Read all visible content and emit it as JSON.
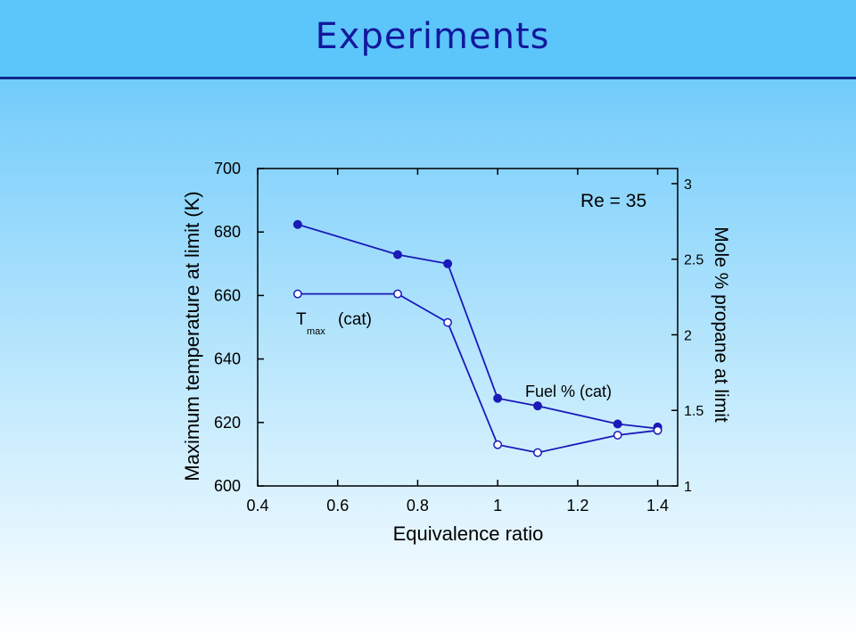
{
  "title": "Experiments",
  "chart_data": {
    "type": "line",
    "xlabel": "Equivalence ratio",
    "ylabel": "Maximum temperature at limit (K)",
    "y2label": "Mole % propane at limit",
    "xlim": [
      0.4,
      1.45
    ],
    "ylim": [
      600,
      700
    ],
    "y2lim": [
      1,
      3.1
    ],
    "xticks": [
      0.4,
      0.6,
      0.8,
      1,
      1.2,
      1.4
    ],
    "xtick_labels": [
      "0.4",
      "0.6",
      "0.8",
      "1",
      "1.2",
      "1.4"
    ],
    "yticks": [
      600,
      620,
      640,
      660,
      680,
      700
    ],
    "ytick_labels": [
      "600",
      "620",
      "640",
      "660",
      "680",
      "700"
    ],
    "y2ticks": [
      1,
      1.5,
      2,
      2.5,
      3
    ],
    "y2tick_labels": [
      "1",
      "1.5",
      "2",
      "2.5",
      "3"
    ],
    "annotation": "Re = 35",
    "series_labels": {
      "tmax_main": "T",
      "tmax_sub": "max",
      "tmax_suffix": "(cat)",
      "fuel": "Fuel % (cat)"
    },
    "series": [
      {
        "axis": "right",
        "marker": "filled",
        "x": [
          0.5,
          0.75,
          0.875,
          1.0,
          1.1,
          1.3,
          1.4
        ],
        "values": [
          2.73,
          2.53,
          2.47,
          1.58,
          1.53,
          1.41,
          1.38
        ]
      },
      {
        "axis": "right",
        "marker": "filled",
        "x": [
          1.4
        ],
        "values": [
          1.39
        ]
      },
      {
        "axis": "left",
        "marker": "open",
        "x": [
          0.5,
          0.75,
          0.875,
          1.0,
          1.1,
          1.3,
          1.4
        ],
        "values": [
          660.5,
          660.5,
          651.5,
          613,
          610.5,
          616,
          617.5
        ]
      }
    ],
    "colors": {
      "line": "#1a1ab8",
      "text": "#000000",
      "title": "#12189c"
    },
    "grid": false
  }
}
